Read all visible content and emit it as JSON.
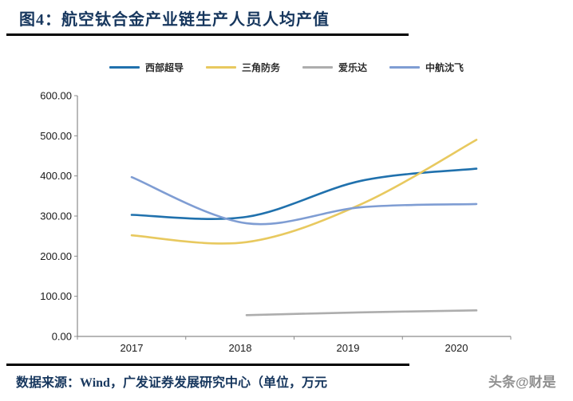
{
  "figure": {
    "title": "图4：航空钛合金产业链生产人员人均产值"
  },
  "legend": {
    "items": [
      {
        "label": "西部超导",
        "color": "#2071AD"
      },
      {
        "label": "三角防务",
        "color": "#E8C95F"
      },
      {
        "label": "爱乐达",
        "color": "#ADADAD"
      },
      {
        "label": "中航沈飞",
        "color": "#7F9DD3"
      }
    ]
  },
  "chart_data": {
    "type": "line",
    "title": "航空钛合金产业链生产人员人均产值",
    "categories": [
      "2017",
      "2018",
      "2019",
      "2020"
    ],
    "series": [
      {
        "name": "西部超导",
        "color": "#2071AD",
        "values": [
          303,
          298,
          388,
          418
        ]
      },
      {
        "name": "三角防务",
        "color": "#E8C95F",
        "values": [
          252,
          235,
          330,
          490
        ]
      },
      {
        "name": "爱乐达",
        "color": "#ADADAD",
        "values": [
          null,
          53,
          60,
          65
        ]
      },
      {
        "name": "中航沈飞",
        "color": "#7F9DD3",
        "values": [
          397,
          282,
          322,
          330
        ]
      }
    ],
    "xlabel": "",
    "ylabel": "",
    "ylim": [
      0,
      600
    ],
    "ytick_step": 100,
    "ytick_format": "two_decimals",
    "grid": false,
    "legend_position": "top",
    "line_smoothing": true,
    "unit": "万元/人"
  },
  "footer": {
    "source": "数据来源：Wind，广发证券发展研究中心（单位，万元",
    "watermark": "头条@财是"
  }
}
